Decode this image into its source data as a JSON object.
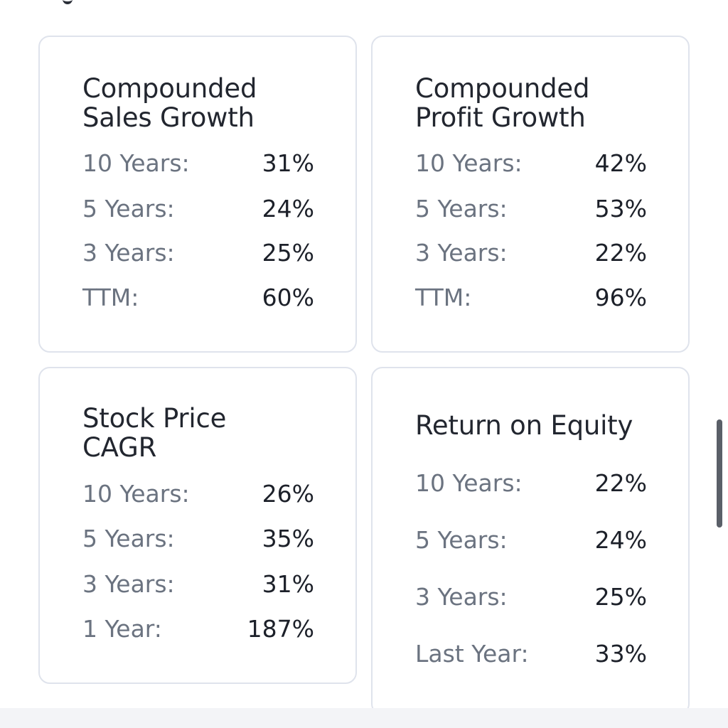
{
  "cards": [
    {
      "title_line1": "Compounded",
      "title_line2": "Sales Growth",
      "rows": [
        {
          "label": "10 Years:",
          "value": "31%"
        },
        {
          "label": "5 Years:",
          "value": "24%"
        },
        {
          "label": "3 Years:",
          "value": "25%"
        },
        {
          "label": "TTM:",
          "value": "60%"
        }
      ]
    },
    {
      "title_line1": "Compounded",
      "title_line2": "Profit Growth",
      "rows": [
        {
          "label": "10 Years:",
          "value": "42%"
        },
        {
          "label": "5 Years:",
          "value": "53%"
        },
        {
          "label": "3 Years:",
          "value": "22%"
        },
        {
          "label": "TTM:",
          "value": "96%"
        }
      ]
    },
    {
      "title_line1": "Stock Price",
      "title_line2": "CAGR",
      "rows": [
        {
          "label": "10 Years:",
          "value": "26%"
        },
        {
          "label": "5 Years:",
          "value": "35%"
        },
        {
          "label": "3 Years:",
          "value": "31%"
        },
        {
          "label": "1 Year:",
          "value": "187%"
        }
      ]
    },
    {
      "title_line1": "Return on Equity",
      "rows": [
        {
          "label": "10 Years:",
          "value": "22%"
        },
        {
          "label": "5 Years:",
          "value": "24%"
        },
        {
          "label": "3 Years:",
          "value": "25%"
        },
        {
          "label": "Last Year:",
          "value": "33%"
        }
      ]
    }
  ]
}
